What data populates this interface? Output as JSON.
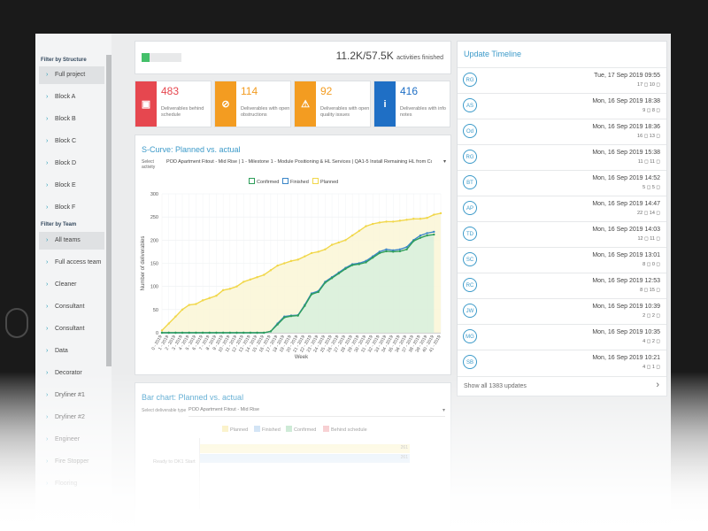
{
  "sidebar": {
    "structure_title": "Filter by Structure",
    "structure_items": [
      "Full project",
      "Block A",
      "Block B",
      "Block C",
      "Block D",
      "Block E",
      "Block F"
    ],
    "team_title": "Filter by Team",
    "team_items": [
      "All teams",
      "Full access team",
      "Cleaner",
      "Consultant",
      "Consultant",
      "Data",
      "Decorator",
      "Dryliner #1",
      "Dryliner #2",
      "Engineer",
      "Fire Stopper",
      "Flooring"
    ]
  },
  "progress": {
    "fraction": 0.195,
    "value_text": "11.2K/57.5K",
    "suffix": "activities finished",
    "color": "#44c06a"
  },
  "stats": [
    {
      "value": "483",
      "label": "Deliverables behind schedule",
      "color": "#e6474f",
      "icon": "calendar-warning-icon",
      "glyph": "▣"
    },
    {
      "value": "114",
      "label": "Deliverables with open obstructions",
      "color": "#f39c21",
      "icon": "no-entry-icon",
      "glyph": "⊘"
    },
    {
      "value": "92",
      "label": "Deliverables with open quality issues",
      "color": "#f39c21",
      "icon": "warning-icon",
      "glyph": "⚠"
    },
    {
      "value": "416",
      "label": "Deliverables with info notes",
      "color": "#1f6fc5",
      "icon": "info-icon",
      "glyph": "i"
    }
  ],
  "scurve": {
    "title": "S-Curve: Planned vs. actual",
    "select_label": "Select activity",
    "select_value": "POD Apartment Fitout - Mid Rise | 1 - Milestone 1 - Module Positioning & HL Services | QA1-5 Install Remaining HL from Corridor R...",
    "legend": [
      "Confirmed",
      "Finished",
      "Planned"
    ]
  },
  "chart_data": {
    "type": "line",
    "title": "",
    "xlabel": "Week",
    "ylabel": "Number of deliverables",
    "ylim": [
      0,
      300
    ],
    "yticks": [
      0,
      50,
      100,
      150,
      200,
      250,
      300
    ],
    "categories": [
      "0 - 2019",
      "1 - 2019",
      "2 - 2019",
      "3 - 2019",
      "4 - 2019",
      "5 - 2019",
      "6 - 2019",
      "7 - 2019",
      "8 - 2019",
      "9 - 2019",
      "10 - 2019",
      "11 - 2019",
      "12 - 2019",
      "13 - 2019",
      "14 - 2019",
      "15 - 2019",
      "16 - 2019",
      "17 - 2019",
      "18 - 2019",
      "19 - 2019",
      "20 - 2019",
      "21 - 2019",
      "22 - 2019",
      "23 - 2019",
      "24 - 2019",
      "25 - 2019",
      "26 - 2019",
      "27 - 2019",
      "28 - 2019",
      "29 - 2019",
      "30 - 2019",
      "31 - 2019",
      "32 - 2019",
      "33 - 2019",
      "34 - 2019",
      "35 - 2019",
      "36 - 2019",
      "37 - 2019",
      "38 - 2019",
      "39 - 2019",
      "40 - 2019",
      "41 - 2019"
    ],
    "series": [
      {
        "name": "Planned",
        "color": "#f1d74a",
        "fill": "#fbf6d8",
        "values": [
          5,
          20,
          35,
          50,
          60,
          62,
          70,
          75,
          80,
          92,
          95,
          100,
          110,
          115,
          120,
          125,
          135,
          145,
          150,
          155,
          158,
          165,
          172,
          175,
          180,
          190,
          195,
          200,
          210,
          220,
          230,
          235,
          238,
          240,
          240,
          242,
          244,
          246,
          246,
          248,
          255,
          258
        ]
      },
      {
        "name": "Finished",
        "color": "#3a86c8",
        "fill": null,
        "values": [
          0,
          0,
          0,
          0,
          0,
          0,
          0,
          0,
          0,
          0,
          0,
          0,
          0,
          0,
          0,
          0,
          3,
          20,
          35,
          37,
          38,
          60,
          85,
          90,
          110,
          120,
          130,
          140,
          148,
          150,
          155,
          165,
          175,
          180,
          178,
          180,
          185,
          200,
          210,
          215,
          218,
          null
        ]
      },
      {
        "name": "Confirmed",
        "color": "#2e9e5a",
        "fill": "#d9efdd",
        "values": [
          0,
          0,
          0,
          0,
          0,
          0,
          0,
          0,
          0,
          0,
          0,
          0,
          0,
          0,
          0,
          0,
          3,
          18,
          33,
          36,
          37,
          58,
          83,
          88,
          108,
          118,
          128,
          138,
          146,
          148,
          152,
          162,
          172,
          176,
          175,
          176,
          180,
          198,
          205,
          210,
          212,
          null
        ]
      }
    ]
  },
  "barchart": {
    "title": "Bar chart: Planned vs. actual",
    "select_label": "Select deliverable type",
    "select_value": "POD Apartment Fitout - Mid Rise",
    "legend": [
      "Planned",
      "Finished",
      "Confirmed",
      "Behind schedule"
    ],
    "legend_colors": [
      "#f7e79a",
      "#a9cbec",
      "#9fd7b0",
      "#f0a3a8"
    ],
    "row_label": "Ready to OK1 Start",
    "bar_values": [
      "261",
      "261"
    ]
  },
  "timeline": {
    "title": "Update Timeline",
    "rows": [
      {
        "initials": "RG",
        "date": "Tue, 17 Sep 2019 09:55",
        "meta": "17 ◻ 10 ◻"
      },
      {
        "initials": "AS",
        "date": "Mon, 16 Sep 2019 18:38",
        "meta": "9 ◻ 8 ◻"
      },
      {
        "initials": "Od",
        "date": "Mon, 16 Sep 2019 18:36",
        "meta": "16 ◻ 13 ◻"
      },
      {
        "initials": "RG",
        "date": "Mon, 16 Sep 2019 15:38",
        "meta": "11 ◻ 11 ◻"
      },
      {
        "initials": "BT",
        "date": "Mon, 16 Sep 2019 14:52",
        "meta": "5 ◻ 5 ◻"
      },
      {
        "initials": "AP",
        "date": "Mon, 16 Sep 2019 14:47",
        "meta": "22 ◻ 14 ◻"
      },
      {
        "initials": "TD",
        "date": "Mon, 16 Sep 2019 14:03",
        "meta": "12 ◻ 11 ◻"
      },
      {
        "initials": "SC",
        "date": "Mon, 16 Sep 2019 13:01",
        "meta": "8 ◻ 0 ◻"
      },
      {
        "initials": "RC",
        "date": "Mon, 16 Sep 2019 12:53",
        "meta": "8 ◻ 15 ◻"
      },
      {
        "initials": "JW",
        "date": "Mon, 16 Sep 2019 10:39",
        "meta": "2 ◻ 2 ◻"
      },
      {
        "initials": "MG",
        "date": "Mon, 16 Sep 2019 10:35",
        "meta": "4 ◻ 2 ◻"
      },
      {
        "initials": "SB",
        "date": "Mon, 16 Sep 2019 10:21",
        "meta": "4 ◻ 1 ◻"
      }
    ],
    "show_all": "Show all 1383 updates",
    "show_all_chevron": "›"
  }
}
